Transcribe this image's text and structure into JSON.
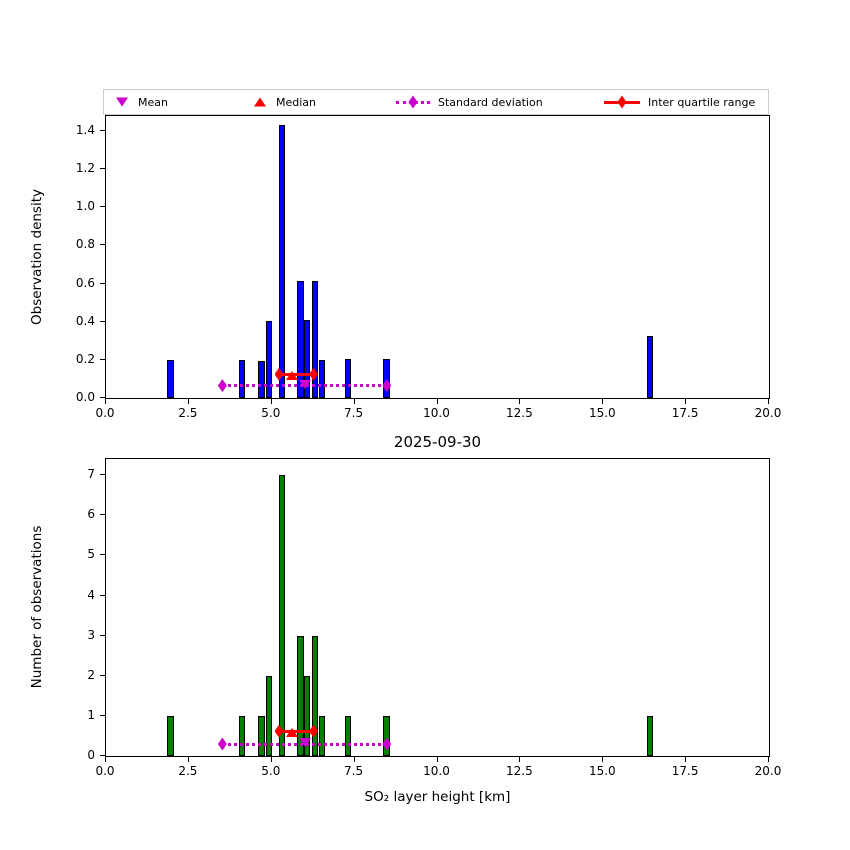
{
  "title": "2025-09-30",
  "legend": {
    "items": [
      {
        "label": "Mean",
        "marker": "triangle-down",
        "color": "#cc00cc"
      },
      {
        "label": "Median",
        "marker": "triangle-up",
        "color": "#ff0000"
      },
      {
        "label": "Standard deviation",
        "marker": "diamond-dotted-line",
        "color": "#cc00cc"
      },
      {
        "label": "Inter quartile range",
        "marker": "diamond-solid-line",
        "color": "#ff0000"
      }
    ]
  },
  "colors": {
    "mean": "#cc00cc",
    "median": "#ff0000",
    "std": "#cc00cc",
    "iqr": "#ff0000",
    "bar_edge": "#000000",
    "axis": "#000000",
    "legend_border": "#cccccc"
  },
  "chart_data": [
    {
      "type": "bar",
      "name": "observation-density-histogram",
      "title": "",
      "xlabel": "",
      "ylabel": "Observation density",
      "bar_color": "#0000ff",
      "bin_width": 0.2,
      "xlim": [
        0,
        20
      ],
      "ylim": [
        0,
        1.478
      ],
      "xticks": [
        0,
        2.5,
        5,
        7.5,
        10,
        12.5,
        15,
        17.5,
        20
      ],
      "yticks": [
        0,
        0.2,
        0.4,
        0.6,
        0.8,
        1.0,
        1.2,
        1.4
      ],
      "ytick_decimals": 1,
      "x": [
        1.95,
        4.1,
        4.69,
        4.91,
        5.31,
        5.87,
        6.07,
        6.31,
        6.52,
        7.3,
        8.46,
        16.41
      ],
      "values": [
        0.2,
        0.2,
        0.195,
        0.405,
        1.43,
        0.615,
        0.41,
        0.615,
        0.2,
        0.205,
        0.205,
        0.325
      ],
      "stats": {
        "mean": 6.0,
        "median": 5.6,
        "q1": 5.22,
        "q3": 6.26,
        "std_low": 3.51,
        "std_high": 8.47,
        "mean_y": 0.07,
        "median_y": 0.12,
        "iqr_y": 0.125,
        "std_y": 0.065
      },
      "legend_position": "top"
    },
    {
      "type": "bar",
      "name": "observation-count-histogram",
      "title": "2025-09-30",
      "xlabel": "SO₂ layer height [km]",
      "ylabel": "Number of observations",
      "bar_color": "#008000",
      "bin_width": 0.2,
      "xlim": [
        0,
        20
      ],
      "ylim": [
        0,
        7.4
      ],
      "xticks": [
        0,
        2.5,
        5,
        7.5,
        10,
        12.5,
        15,
        17.5,
        20
      ],
      "yticks": [
        0,
        1,
        2,
        3,
        4,
        5,
        6,
        7
      ],
      "ytick_decimals": 0,
      "x": [
        1.95,
        4.1,
        4.69,
        4.91,
        5.31,
        5.87,
        6.07,
        6.31,
        6.52,
        7.3,
        8.46,
        16.41
      ],
      "values": [
        1,
        1,
        1,
        2,
        7,
        3,
        2,
        3,
        1,
        1,
        1,
        1
      ],
      "stats": {
        "mean": 6.0,
        "median": 5.6,
        "q1": 5.22,
        "q3": 6.26,
        "std_low": 3.51,
        "std_high": 8.47,
        "mean_y": 0.33,
        "median_y": 0.58,
        "iqr_y": 0.62,
        "std_y": 0.3
      },
      "legend_position": "none"
    }
  ]
}
